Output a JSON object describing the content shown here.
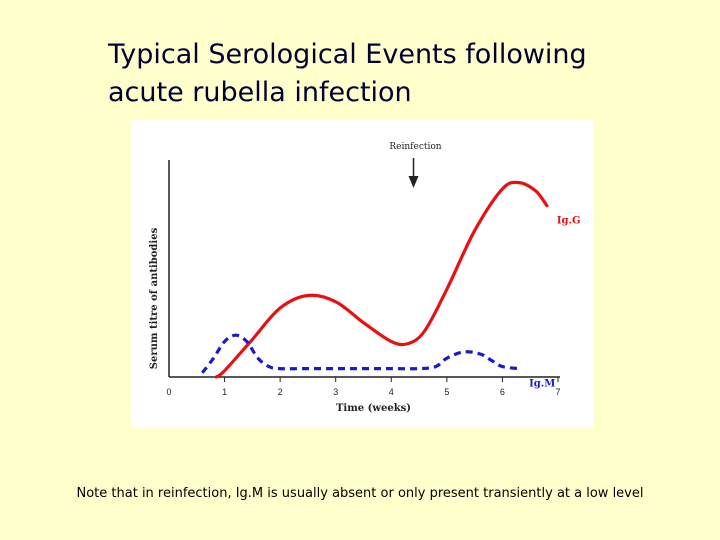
{
  "slide": {
    "title": "Typical Serological Events following\nacute rubella infection",
    "footnote": "Note that in reinfection, Ig.M is usually absent or only present transiently at a low level"
  },
  "chart_data": {
    "type": "line",
    "xlabel": "Time (weeks)",
    "ylabel": "Serum titre of antibodies",
    "xlim": [
      0,
      7
    ],
    "ylim": [
      0,
      100
    ],
    "grid": false,
    "x_ticks": [
      "0",
      "1",
      "2",
      "3",
      "4",
      "5",
      "6",
      "7"
    ],
    "annotation": {
      "text": "Reinfection",
      "x": 4.4
    },
    "series": [
      {
        "name": "Ig.G",
        "color": "#e81010",
        "dash": "solid",
        "x": [
          0.85,
          1.0,
          1.5,
          2.0,
          2.5,
          3.0,
          3.5,
          4.0,
          4.3,
          4.6,
          5.0,
          5.5,
          6.0,
          6.3,
          6.6,
          6.8
        ],
        "y": [
          0,
          3,
          18,
          33,
          39,
          36,
          26,
          17,
          16,
          22,
          42,
          70,
          90,
          93,
          89,
          82
        ]
      },
      {
        "name": "Ig.M",
        "color": "#1a1acc",
        "dash": "dashed",
        "x": [
          0.6,
          0.8,
          1.0,
          1.2,
          1.4,
          1.6,
          1.8,
          2.0,
          2.5,
          3.0,
          3.5,
          4.0,
          4.5,
          4.8,
          5.0,
          5.3,
          5.6,
          5.8,
          6.0,
          6.3
        ],
        "y": [
          2,
          9,
          17,
          20,
          17,
          9,
          5,
          4,
          4,
          4,
          4,
          4,
          4,
          5,
          9,
          12,
          11,
          8,
          5,
          4
        ]
      }
    ]
  }
}
